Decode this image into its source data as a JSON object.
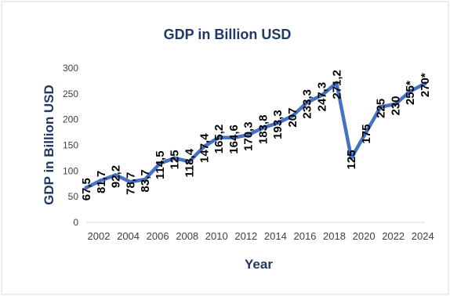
{
  "chart_data": {
    "type": "line",
    "title": "GDP in Billion USD",
    "xlabel": "Year",
    "ylabel": "GDP in Billion USD",
    "x": [
      2002,
      2003,
      2004,
      2005,
      2006,
      2007,
      2008,
      2009,
      2010,
      2011,
      2012,
      2013,
      2014,
      2015,
      2016,
      2017,
      2018,
      2019,
      2020,
      2021,
      2022,
      2023,
      2024,
      2025
    ],
    "x_tick_labels": [
      "2002",
      "2004",
      "2006",
      "2008",
      "2010",
      "2012",
      "2014",
      "2016",
      "2018",
      "2020",
      "2022",
      "2024"
    ],
    "y_tick_labels": [
      "0",
      "50",
      "100",
      "150",
      "200",
      "250",
      "300"
    ],
    "ylim": [
      0,
      300
    ],
    "grid": false,
    "legend": "none",
    "series": [
      {
        "values": [
          67.5,
          81.7,
          92.2,
          78.7,
          83.7,
          114.5,
          125,
          118.4,
          147.4,
          165.2,
          164.6,
          170.3,
          183.8,
          193.3,
          207,
          233.3,
          247.3,
          271.2,
          125,
          175,
          225,
          230,
          255,
          270
        ],
        "labels": [
          "67,5",
          "81,7",
          "92,2",
          "78,7",
          "83,7",
          "114,5",
          "125",
          "118,4",
          "147,4",
          "165,2",
          "164,6",
          "170,3",
          "183,8",
          "193,3",
          "207",
          "233,3",
          "247,3",
          "271,2",
          "125",
          "175",
          "225",
          "230",
          "255*",
          "270*"
        ],
        "color": "#4472c4"
      }
    ]
  }
}
